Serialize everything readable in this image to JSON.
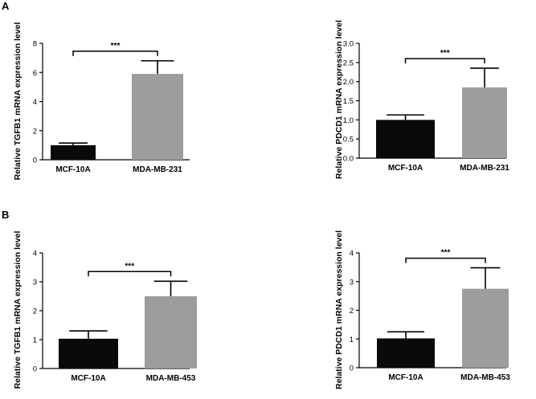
{
  "panels": [
    "A",
    "B"
  ],
  "chart_data": [
    {
      "type": "bar",
      "panel": "A",
      "categories": [
        "MCF-10A",
        "MDA-MB-231"
      ],
      "values": [
        1.0,
        5.9
      ],
      "errors": [
        0.15,
        0.9
      ],
      "bar_colors": [
        "#0a0a0a",
        "#9d9da0"
      ],
      "ylabel": "Relative TGFB1 mRNA expression level",
      "ylim": [
        0,
        8
      ],
      "yticks": [
        "0",
        "2",
        "4",
        "6",
        "8"
      ],
      "significance": "***"
    },
    {
      "type": "bar",
      "panel": "A",
      "categories": [
        "MCF-10A",
        "MDA-MB-231"
      ],
      "values": [
        1.0,
        1.85
      ],
      "errors": [
        0.13,
        0.5
      ],
      "bar_colors": [
        "#0a0a0a",
        "#9d9da0"
      ],
      "ylabel": "Relative PDCD1 mRNA expression level",
      "ylim": [
        0,
        3.0
      ],
      "yticks": [
        "0.0",
        "0.5",
        "1.0",
        "1.5",
        "2.0",
        "2.5",
        "3.0"
      ],
      "significance": "***"
    },
    {
      "type": "bar",
      "panel": "B",
      "categories": [
        "MCF-10A",
        "MDA-MB-453"
      ],
      "values": [
        1.03,
        2.5
      ],
      "errors": [
        0.27,
        0.52
      ],
      "bar_colors": [
        "#0a0a0a",
        "#9d9da0"
      ],
      "ylabel": "Relative TGFB1 mRNA expression level",
      "ylim": [
        0,
        4
      ],
      "yticks": [
        "0",
        "1",
        "2",
        "3",
        "4"
      ],
      "significance": "***"
    },
    {
      "type": "bar",
      "panel": "B",
      "categories": [
        "MCF-10A",
        "MDA-MB-453"
      ],
      "values": [
        1.02,
        2.75
      ],
      "errors": [
        0.23,
        0.73
      ],
      "bar_colors": [
        "#0a0a0a",
        "#9d9da0"
      ],
      "ylabel": "Relative PDCD1 mRNA expression level",
      "ylim": [
        0,
        4
      ],
      "yticks": [
        "0",
        "1",
        "2",
        "3",
        "4"
      ],
      "significance": "***"
    }
  ]
}
